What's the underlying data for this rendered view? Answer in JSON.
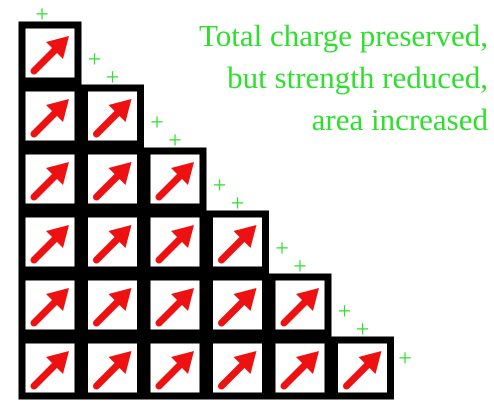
{
  "caption": {
    "lines": [
      "Total charge preserved,",
      "but strength reduced,",
      "area increased"
    ]
  },
  "plus_sign": "+"
}
